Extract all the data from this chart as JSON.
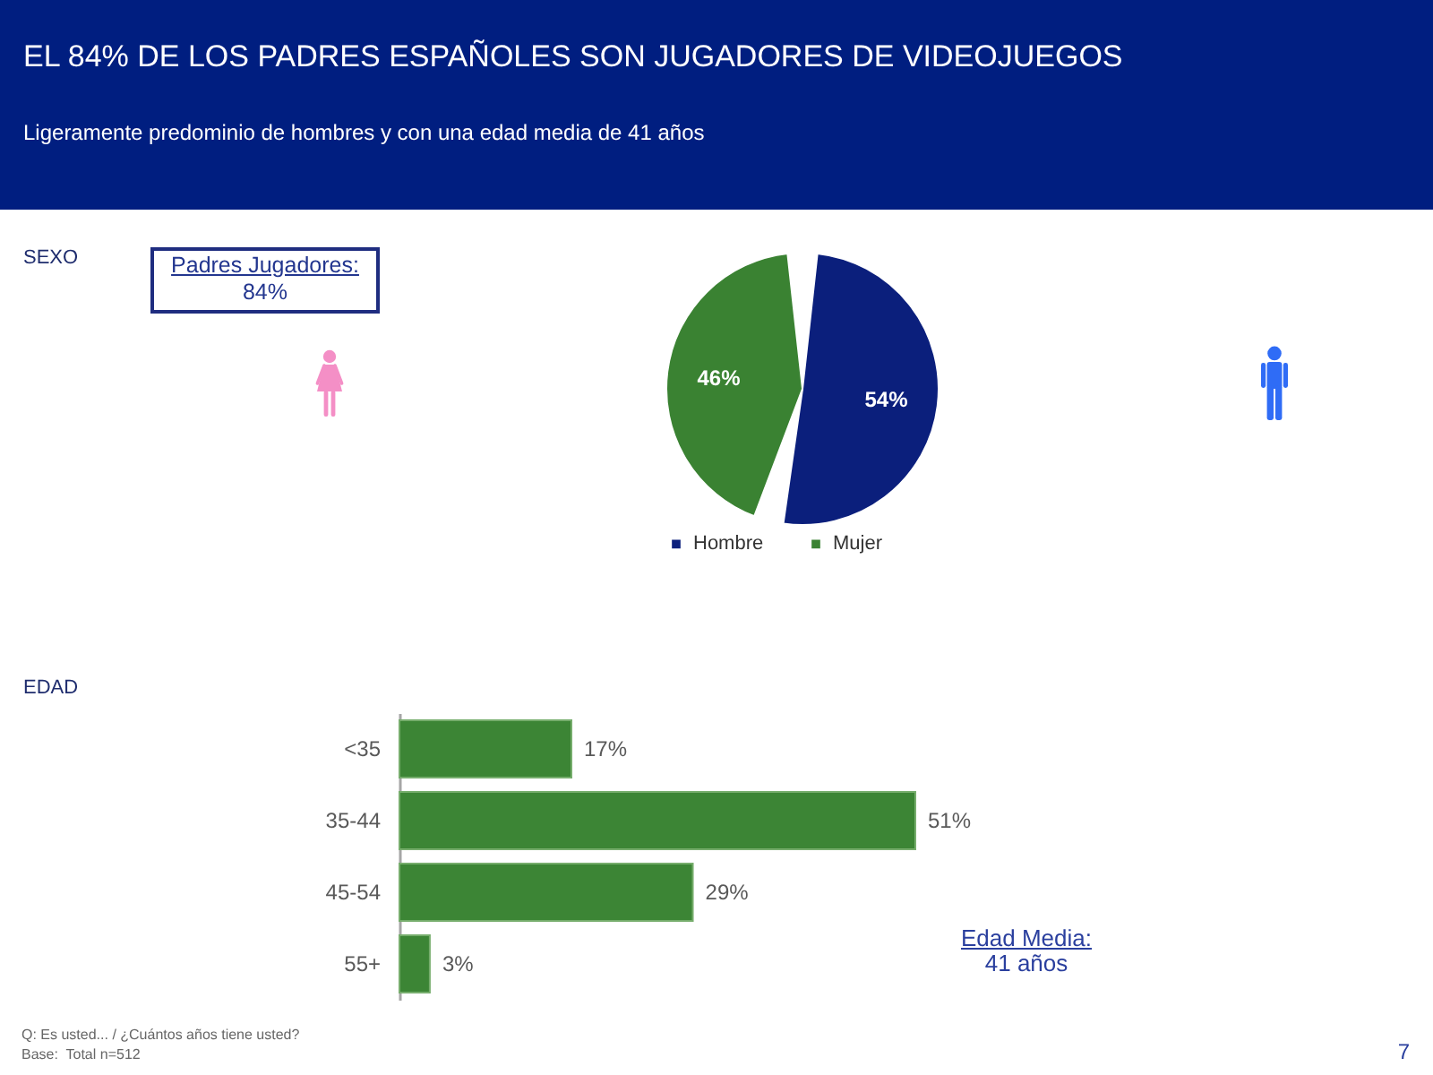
{
  "chart_data": [
    {
      "type": "pie",
      "title": "EL 84% DE LOS PADRES ESPAÑOLES SON JUGADORES DE VIDEOJUEGOS",
      "subtitle": "Ligeramente predominio de hombres y con una edad media de 41 años",
      "annotations": [
        "SEXO",
        "Padres Jugadores:",
        "84%"
      ],
      "categories": [
        "Hombre",
        "Mujer"
      ],
      "values": [
        54,
        46
      ],
      "colors": [
        "#0b1f7c",
        "#3a8232"
      ],
      "value_labels": [
        "54%",
        "46%"
      ],
      "legend": "bottom"
    },
    {
      "type": "bar",
      "orientation": "horizontal",
      "annotations": [
        "EDAD",
        "Edad Media:",
        "41 años",
        "Q: Es usted... / ¿Cuántos años tiene usted?",
        "Base:  Total n=512",
        "7"
      ],
      "categories": [
        "<35",
        "35-44",
        "45-54",
        "55+"
      ],
      "values": [
        17,
        51,
        29,
        3
      ],
      "color": "#3c8535",
      "value_labels": [
        "17%",
        "51%",
        "29%",
        "3%"
      ]
    }
  ]
}
